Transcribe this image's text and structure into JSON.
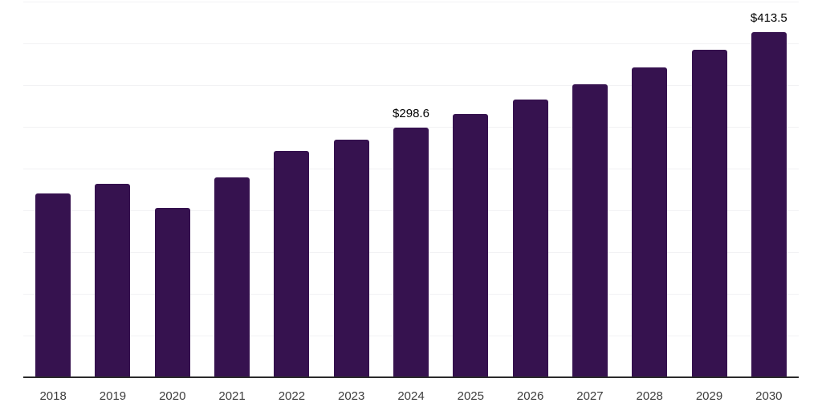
{
  "chart_data": {
    "type": "bar",
    "title": "",
    "xlabel": "",
    "ylabel": "",
    "categories": [
      "2018",
      "2019",
      "2020",
      "2021",
      "2022",
      "2023",
      "2024",
      "2025",
      "2026",
      "2027",
      "2028",
      "2029",
      "2030"
    ],
    "values": [
      220.6,
      231.8,
      202.6,
      239.4,
      270.9,
      284.6,
      298.6,
      315.1,
      332.4,
      350.7,
      370.9,
      392.3,
      413.5
    ],
    "data_labels": [
      "",
      "",
      "",
      "",
      "",
      "",
      "$298.6",
      "",
      "",
      "",
      "",
      "",
      "$413.5"
    ],
    "currency_prefix": "$",
    "ylim": [
      0,
      450
    ],
    "gridline_step": 50,
    "grid": true,
    "legend_position": "none",
    "y_axis_labels_visible": false,
    "colors": {
      "bar": "#36124F",
      "axis": "#2B2B2B",
      "gridline": "#F2F2F4",
      "tick_label": "#3D3D3D",
      "data_label": "#000000",
      "background": "#FFFFFF"
    }
  }
}
